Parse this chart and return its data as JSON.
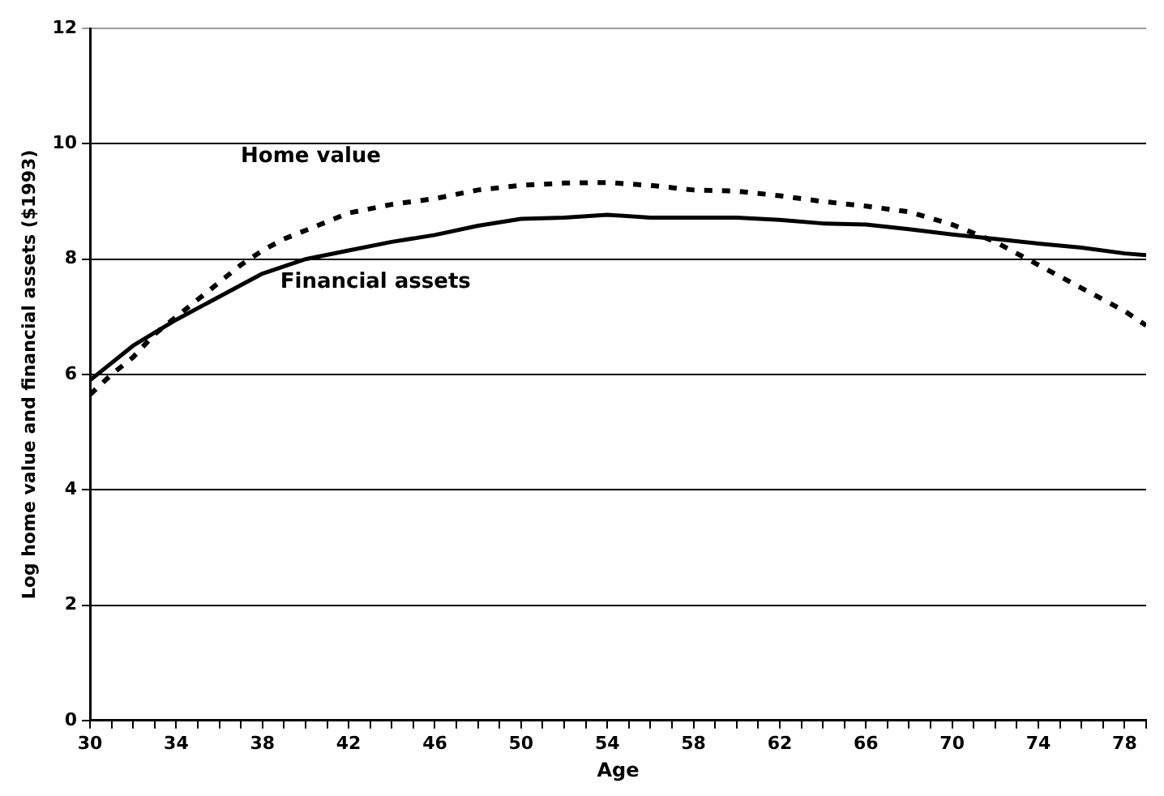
{
  "chart_data": {
    "type": "line",
    "xlabel": "Age",
    "ylabel": "Log home value and financial assets ($1993)",
    "xlim": [
      30,
      79
    ],
    "ylim": [
      0,
      12
    ],
    "yticks": [
      0,
      2,
      4,
      6,
      8,
      10,
      12
    ],
    "xticks": [
      30,
      {
        "value": 31,
        "label": null
      },
      {
        "value": 32,
        "label": null
      },
      {
        "value": 33,
        "label": null
      },
      34,
      {
        "value": 35,
        "label": null
      },
      {
        "value": 36,
        "label": null
      },
      {
        "value": 37,
        "label": null
      },
      38,
      {
        "value": 39,
        "label": null
      },
      {
        "value": 40,
        "label": null
      },
      {
        "value": 41,
        "label": null
      },
      42,
      {
        "value": 43,
        "label": null
      },
      {
        "value": 44,
        "label": null
      },
      {
        "value": 45,
        "label": null
      },
      46,
      {
        "value": 47,
        "label": null
      },
      {
        "value": 48,
        "label": null
      },
      {
        "value": 49,
        "label": null
      },
      50,
      {
        "value": 51,
        "label": null
      },
      {
        "value": 52,
        "label": null
      },
      {
        "value": 53,
        "label": null
      },
      54,
      {
        "value": 55,
        "label": null
      },
      {
        "value": 56,
        "label": null
      },
      {
        "value": 57,
        "label": null
      },
      58,
      {
        "value": 59,
        "label": null
      },
      {
        "value": 60,
        "label": null
      },
      {
        "value": 61,
        "label": null
      },
      62,
      {
        "value": 63,
        "label": null
      },
      {
        "value": 64,
        "label": null
      },
      {
        "value": 65,
        "label": null
      },
      66,
      {
        "value": 67,
        "label": null
      },
      {
        "value": 68,
        "label": null
      },
      {
        "value": 69,
        "label": null
      },
      70,
      {
        "value": 71,
        "label": null
      },
      {
        "value": 72,
        "label": null
      },
      {
        "value": 73,
        "label": null
      },
      74,
      {
        "value": 75,
        "label": null
      },
      {
        "value": 76,
        "label": null
      },
      {
        "value": 77,
        "label": null
      },
      78,
      {
        "value": 79,
        "label": null
      }
    ],
    "grid": "y",
    "legend": false,
    "marker": "none",
    "series": [
      {
        "name": "Home value",
        "color": "#000000",
        "line_style": "dashed",
        "x": [
          30,
          31,
          32,
          33,
          34,
          35,
          36,
          37,
          38,
          39,
          40,
          41,
          42,
          44,
          46,
          48,
          50,
          52,
          54,
          56,
          58,
          60,
          62,
          64,
          66,
          68,
          70,
          72,
          74,
          76,
          78,
          79
        ],
        "values": [
          5.65,
          6.0,
          6.3,
          6.7,
          7.0,
          7.3,
          7.6,
          7.9,
          8.15,
          8.35,
          8.5,
          8.65,
          8.8,
          8.95,
          9.05,
          9.2,
          9.28,
          9.32,
          9.33,
          9.28,
          9.2,
          9.18,
          9.1,
          9.0,
          8.92,
          8.82,
          8.6,
          8.3,
          7.9,
          7.5,
          7.1,
          6.85
        ]
      },
      {
        "name": "Financial assets",
        "color": "#000000",
        "line_style": "solid",
        "x": [
          30,
          32,
          34,
          36,
          38,
          40,
          42,
          44,
          46,
          48,
          50,
          52,
          54,
          56,
          58,
          60,
          62,
          64,
          66,
          68,
          70,
          72,
          74,
          76,
          78,
          79
        ],
        "values": [
          5.9,
          6.5,
          6.95,
          7.35,
          7.75,
          8.0,
          8.15,
          8.3,
          8.42,
          8.58,
          8.7,
          8.72,
          8.77,
          8.72,
          8.72,
          8.72,
          8.68,
          8.62,
          8.6,
          8.52,
          8.43,
          8.35,
          8.27,
          8.2,
          8.1,
          8.07
        ]
      }
    ]
  }
}
